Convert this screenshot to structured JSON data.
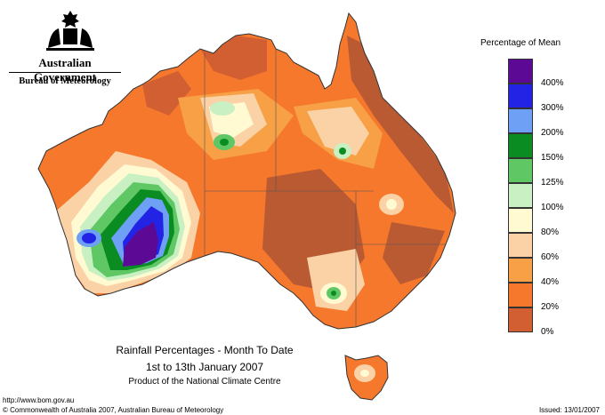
{
  "header": {
    "government": "Australian Government",
    "bureau": "Bureau of Meteorology"
  },
  "map": {
    "type": "choropleth",
    "title": "Rainfall Percentages - Month To Date",
    "period": "1st to 13th January 2007",
    "credit": "Product of the National Climate Centre",
    "regions": [
      "Australia",
      "Tasmania"
    ]
  },
  "legend": {
    "title": "Percentage of Mean",
    "classes": [
      {
        "label": "400%",
        "color": "#5c0a96"
      },
      {
        "label": "300%",
        "color": "#2323e6"
      },
      {
        "label": "200%",
        "color": "#6ea0f5"
      },
      {
        "label": "150%",
        "color": "#0a8c23"
      },
      {
        "label": "125%",
        "color": "#5fc864"
      },
      {
        "label": "100%",
        "color": "#c8f0c3"
      },
      {
        "label": "80%",
        "color": "#fffad2"
      },
      {
        "label": "60%",
        "color": "#fad2a5"
      },
      {
        "label": "40%",
        "color": "#f7a046"
      },
      {
        "label": "20%",
        "color": "#f5782d"
      },
      {
        "label": "0%",
        "color": "#d25f32"
      }
    ],
    "bottom_color": "#b95a32"
  },
  "footer": {
    "url": "http://www.bom.gov.au",
    "copyright": "© Commonwealth of Australia 2007, Australian Bureau of Meteorology",
    "issued": "Issued: 13/01/2007"
  }
}
